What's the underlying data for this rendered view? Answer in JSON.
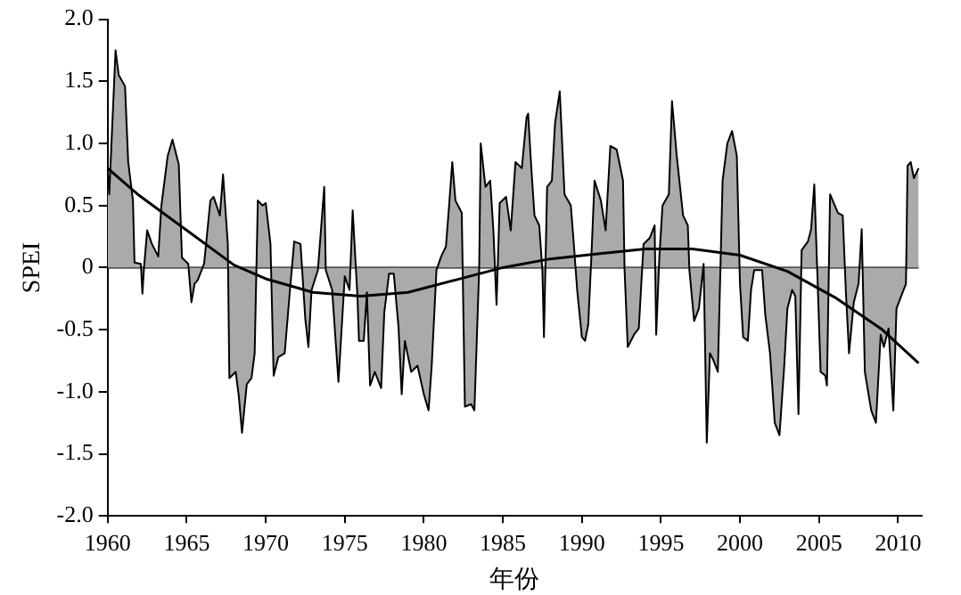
{
  "chart_data": {
    "type": "area",
    "xlabel": "年份",
    "ylabel": "SPEI",
    "xlim": [
      1960,
      2011.5
    ],
    "xticks": [
      1960,
      1965,
      1970,
      1975,
      1980,
      1985,
      1990,
      1995,
      2000,
      2005,
      2010
    ],
    "ylim": [
      -2,
      2
    ],
    "yticks": [
      {
        "value": -2,
        "label": "-2.0"
      },
      {
        "value": -1.5,
        "label": "-1.5"
      },
      {
        "value": -1,
        "label": "-1.0"
      },
      {
        "value": -0.5,
        "label": "-0.5"
      },
      0,
      {
        "value": 0.5,
        "label": "0.5"
      },
      {
        "value": 1,
        "label": "1.0"
      },
      {
        "value": 1.5,
        "label": "1.5"
      },
      {
        "value": 2,
        "label": "2.0"
      }
    ],
    "grid": false,
    "legend": false,
    "marker": "none",
    "ref_lines": [
      {
        "axis": "y",
        "value": 0,
        "color": "#000000"
      }
    ],
    "series": [
      {
        "color": "#aaaaaa",
        "x": [
          1960.0,
          1960.1,
          1960.5,
          1960.7,
          1961.1,
          1961.3,
          1961.6,
          1961.7,
          1962.1,
          1962.2,
          1962.3,
          1962.5,
          1962.8,
          1963.2,
          1963.4,
          1963.8,
          1964.1,
          1964.5,
          1964.7,
          1965.1,
          1965.3,
          1965.5,
          1965.7,
          1966.1,
          1966.5,
          1966.7,
          1967.1,
          1967.3,
          1967.6,
          1967.7,
          1968.1,
          1968.3,
          1968.5,
          1968.8,
          1969.1,
          1969.3,
          1969.5,
          1969.8,
          1970.0,
          1970.3,
          1970.5,
          1970.8,
          1971.2,
          1971.5,
          1971.8,
          1972.2,
          1972.5,
          1972.7,
          1972.9,
          1973.3,
          1973.7,
          1973.8,
          1974.2,
          1974.6,
          1975.0,
          1975.3,
          1975.5,
          1975.8,
          1975.9,
          1976.2,
          1976.4,
          1976.6,
          1976.9,
          1977.3,
          1977.5,
          1977.8,
          1978.1,
          1978.4,
          1978.6,
          1978.8,
          1979.2,
          1979.6,
          1980.0,
          1980.3,
          1980.5,
          1980.8,
          1981.1,
          1981.4,
          1981.6,
          1981.8,
          1982.0,
          1982.4,
          1982.6,
          1983.0,
          1983.2,
          1983.5,
          1983.6,
          1983.9,
          1984.2,
          1984.4,
          1984.6,
          1984.8,
          1985.2,
          1985.5,
          1985.8,
          1986.2,
          1986.5,
          1986.6,
          1986.8,
          1987.0,
          1987.3,
          1987.5,
          1987.6,
          1987.8,
          1988.1,
          1988.3,
          1988.6,
          1988.9,
          1989.3,
          1989.5,
          1989.7,
          1990.0,
          1990.2,
          1990.4,
          1990.6,
          1990.8,
          1991.2,
          1991.5,
          1991.8,
          1992.2,
          1992.6,
          1992.7,
          1992.9,
          1993.3,
          1993.6,
          1993.9,
          1994.3,
          1994.6,
          1994.7,
          1994.9,
          1995.1,
          1995.5,
          1995.7,
          1996.0,
          1996.4,
          1996.7,
          1996.8,
          1997.1,
          1997.4,
          1997.7,
          1997.9,
          1998.1,
          1998.3,
          1998.6,
          1998.9,
          1999.2,
          1999.5,
          1999.8,
          2000.0,
          2000.2,
          2000.5,
          2000.7,
          2000.9,
          2001.4,
          2001.6,
          2001.9,
          2002.2,
          2002.5,
          2002.8,
          2003.0,
          2003.3,
          2003.5,
          2003.7,
          2003.9,
          2004.3,
          2004.5,
          2004.7,
          2004.9,
          2005.1,
          2005.4,
          2005.5,
          2005.7,
          2006.2,
          2006.5,
          2006.7,
          2006.9,
          2007.2,
          2007.5,
          2007.7,
          2007.9,
          2008.3,
          2008.6,
          2008.9,
          2009.1,
          2009.4,
          2009.7,
          2009.9,
          2010.2,
          2010.5,
          2010.6,
          2010.8,
          2011.0,
          2011.3
        ],
        "values": [
          0.8,
          0.59,
          1.75,
          1.55,
          1.46,
          0.85,
          0.54,
          0.04,
          0.03,
          -0.21,
          0.0,
          0.3,
          0.19,
          0.09,
          0.5,
          0.9,
          1.03,
          0.83,
          0.08,
          0.03,
          -0.28,
          -0.13,
          -0.1,
          0.03,
          0.54,
          0.57,
          0.42,
          0.75,
          0.19,
          -0.89,
          -0.84,
          -1.04,
          -1.33,
          -0.94,
          -0.89,
          -0.69,
          0.54,
          0.5,
          0.52,
          0.19,
          -0.87,
          -0.72,
          -0.69,
          -0.23,
          0.21,
          0.19,
          -0.41,
          -0.64,
          -0.18,
          -0.02,
          0.65,
          -0.02,
          -0.18,
          -0.92,
          -0.07,
          -0.18,
          0.46,
          -0.23,
          -0.59,
          -0.59,
          -0.2,
          -0.95,
          -0.84,
          -0.97,
          -0.36,
          -0.05,
          -0.05,
          -0.48,
          -1.02,
          -0.59,
          -0.84,
          -0.79,
          -1.02,
          -1.15,
          -0.79,
          -0.02,
          0.09,
          0.17,
          0.5,
          0.85,
          0.54,
          0.44,
          -1.12,
          -1.1,
          -1.15,
          -0.02,
          1.0,
          0.65,
          0.7,
          0.3,
          -0.3,
          0.52,
          0.57,
          0.3,
          0.85,
          0.8,
          1.21,
          1.24,
          0.8,
          0.42,
          0.34,
          -0.02,
          -0.56,
          0.65,
          0.7,
          1.16,
          1.42,
          0.59,
          0.5,
          0.17,
          -0.18,
          -0.56,
          -0.59,
          -0.46,
          0.09,
          0.7,
          0.54,
          0.3,
          0.98,
          0.95,
          0.7,
          -0.02,
          -0.64,
          -0.54,
          -0.49,
          0.19,
          0.24,
          0.34,
          -0.54,
          0.09,
          0.5,
          0.59,
          1.34,
          0.9,
          0.42,
          0.34,
          -0.02,
          -0.43,
          -0.33,
          0.03,
          -1.41,
          -0.69,
          -0.74,
          -0.84,
          0.7,
          1.0,
          1.1,
          0.9,
          -0.13,
          -0.56,
          -0.59,
          -0.18,
          -0.02,
          -0.02,
          -0.38,
          -0.69,
          -1.25,
          -1.35,
          -0.79,
          -0.33,
          -0.18,
          -0.23,
          -1.18,
          0.14,
          0.21,
          0.31,
          0.67,
          -0.07,
          -0.84,
          -0.87,
          -0.95,
          0.59,
          0.44,
          0.42,
          -0.2,
          -0.69,
          -0.28,
          -0.13,
          0.31,
          -0.84,
          -1.15,
          -1.25,
          -0.54,
          -0.64,
          -0.49,
          -1.15,
          -0.33,
          -0.23,
          -0.13,
          0.82,
          0.85,
          0.72,
          0.8
        ]
      },
      {
        "type": "line",
        "color": "#000000",
        "x": [
          1960,
          1962,
          1965,
          1968,
          1970,
          1973,
          1976,
          1979,
          1982,
          1985,
          1988,
          1991,
          1994,
          1997,
          2000,
          2003,
          2006,
          2009,
          2011.3
        ],
        "values": [
          0.8,
          0.58,
          0.3,
          0.02,
          -0.09,
          -0.2,
          -0.23,
          -0.2,
          -0.1,
          0.0,
          0.07,
          0.11,
          0.15,
          0.15,
          0.1,
          -0.03,
          -0.24,
          -0.5,
          -0.77
        ]
      }
    ]
  }
}
